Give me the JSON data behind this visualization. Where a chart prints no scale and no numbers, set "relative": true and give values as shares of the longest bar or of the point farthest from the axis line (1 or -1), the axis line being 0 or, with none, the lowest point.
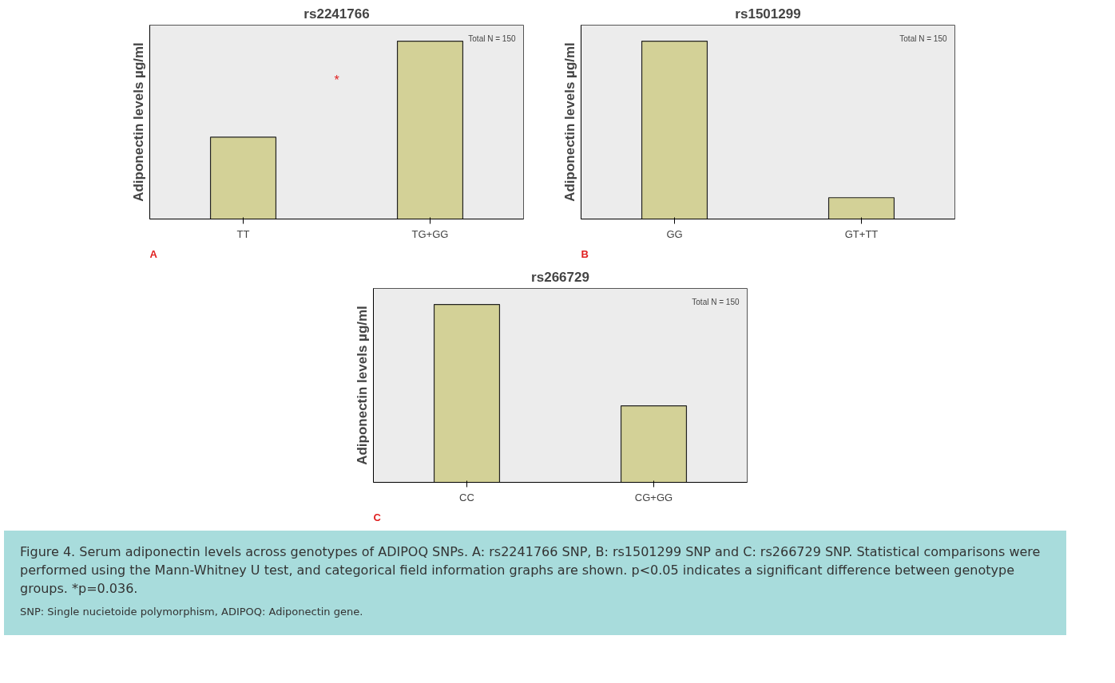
{
  "chart_data": [
    {
      "type": "bar",
      "title": "rs2241766",
      "ylabel": "Adiponectin levels µg/ml",
      "categories": [
        "TT",
        "TG+GG"
      ],
      "values": [
        0.46,
        1
      ],
      "color": "#d3d197",
      "relative": true,
      "grid": false,
      "annotations": [
        "Total N = 150",
        "A",
        "*"
      ]
    },
    {
      "type": "bar",
      "title": "rs1501299",
      "ylabel": "Adiponectin levels µg/ml",
      "categories": [
        "GG",
        "GT+TT"
      ],
      "values": [
        1,
        0.12
      ],
      "color": "#d3d197",
      "relative": true,
      "grid": false,
      "annotations": [
        "Total N = 150",
        "B"
      ]
    },
    {
      "type": "bar",
      "title": "rs266729",
      "ylabel": "Adiponectin levels µg/ml",
      "categories": [
        "CC",
        "CG+GG"
      ],
      "values": [
        1,
        0.43
      ],
      "color": "#d3d197",
      "relative": true,
      "grid": false,
      "annotations": [
        "Total N = 150",
        "C"
      ]
    },
    {
      "type": "other",
      "annotations": [
        "Figure 4. Serum adiponectin levels across genotypes of ADIPOQ SNPs. A: rs2241766 SNP, B: rs1501299 SNP and C: rs266729 SNP. Statistical comparisons were performed using the Mann-Whitney U test, and categorical field information graphs are shown. p<0.05 indicates a significant difference between genotype groups. *p=0.036.",
        "SNP: Single nucietoide polymorphism, ADIPOQ: Adiponectin gene."
      ]
    }
  ]
}
